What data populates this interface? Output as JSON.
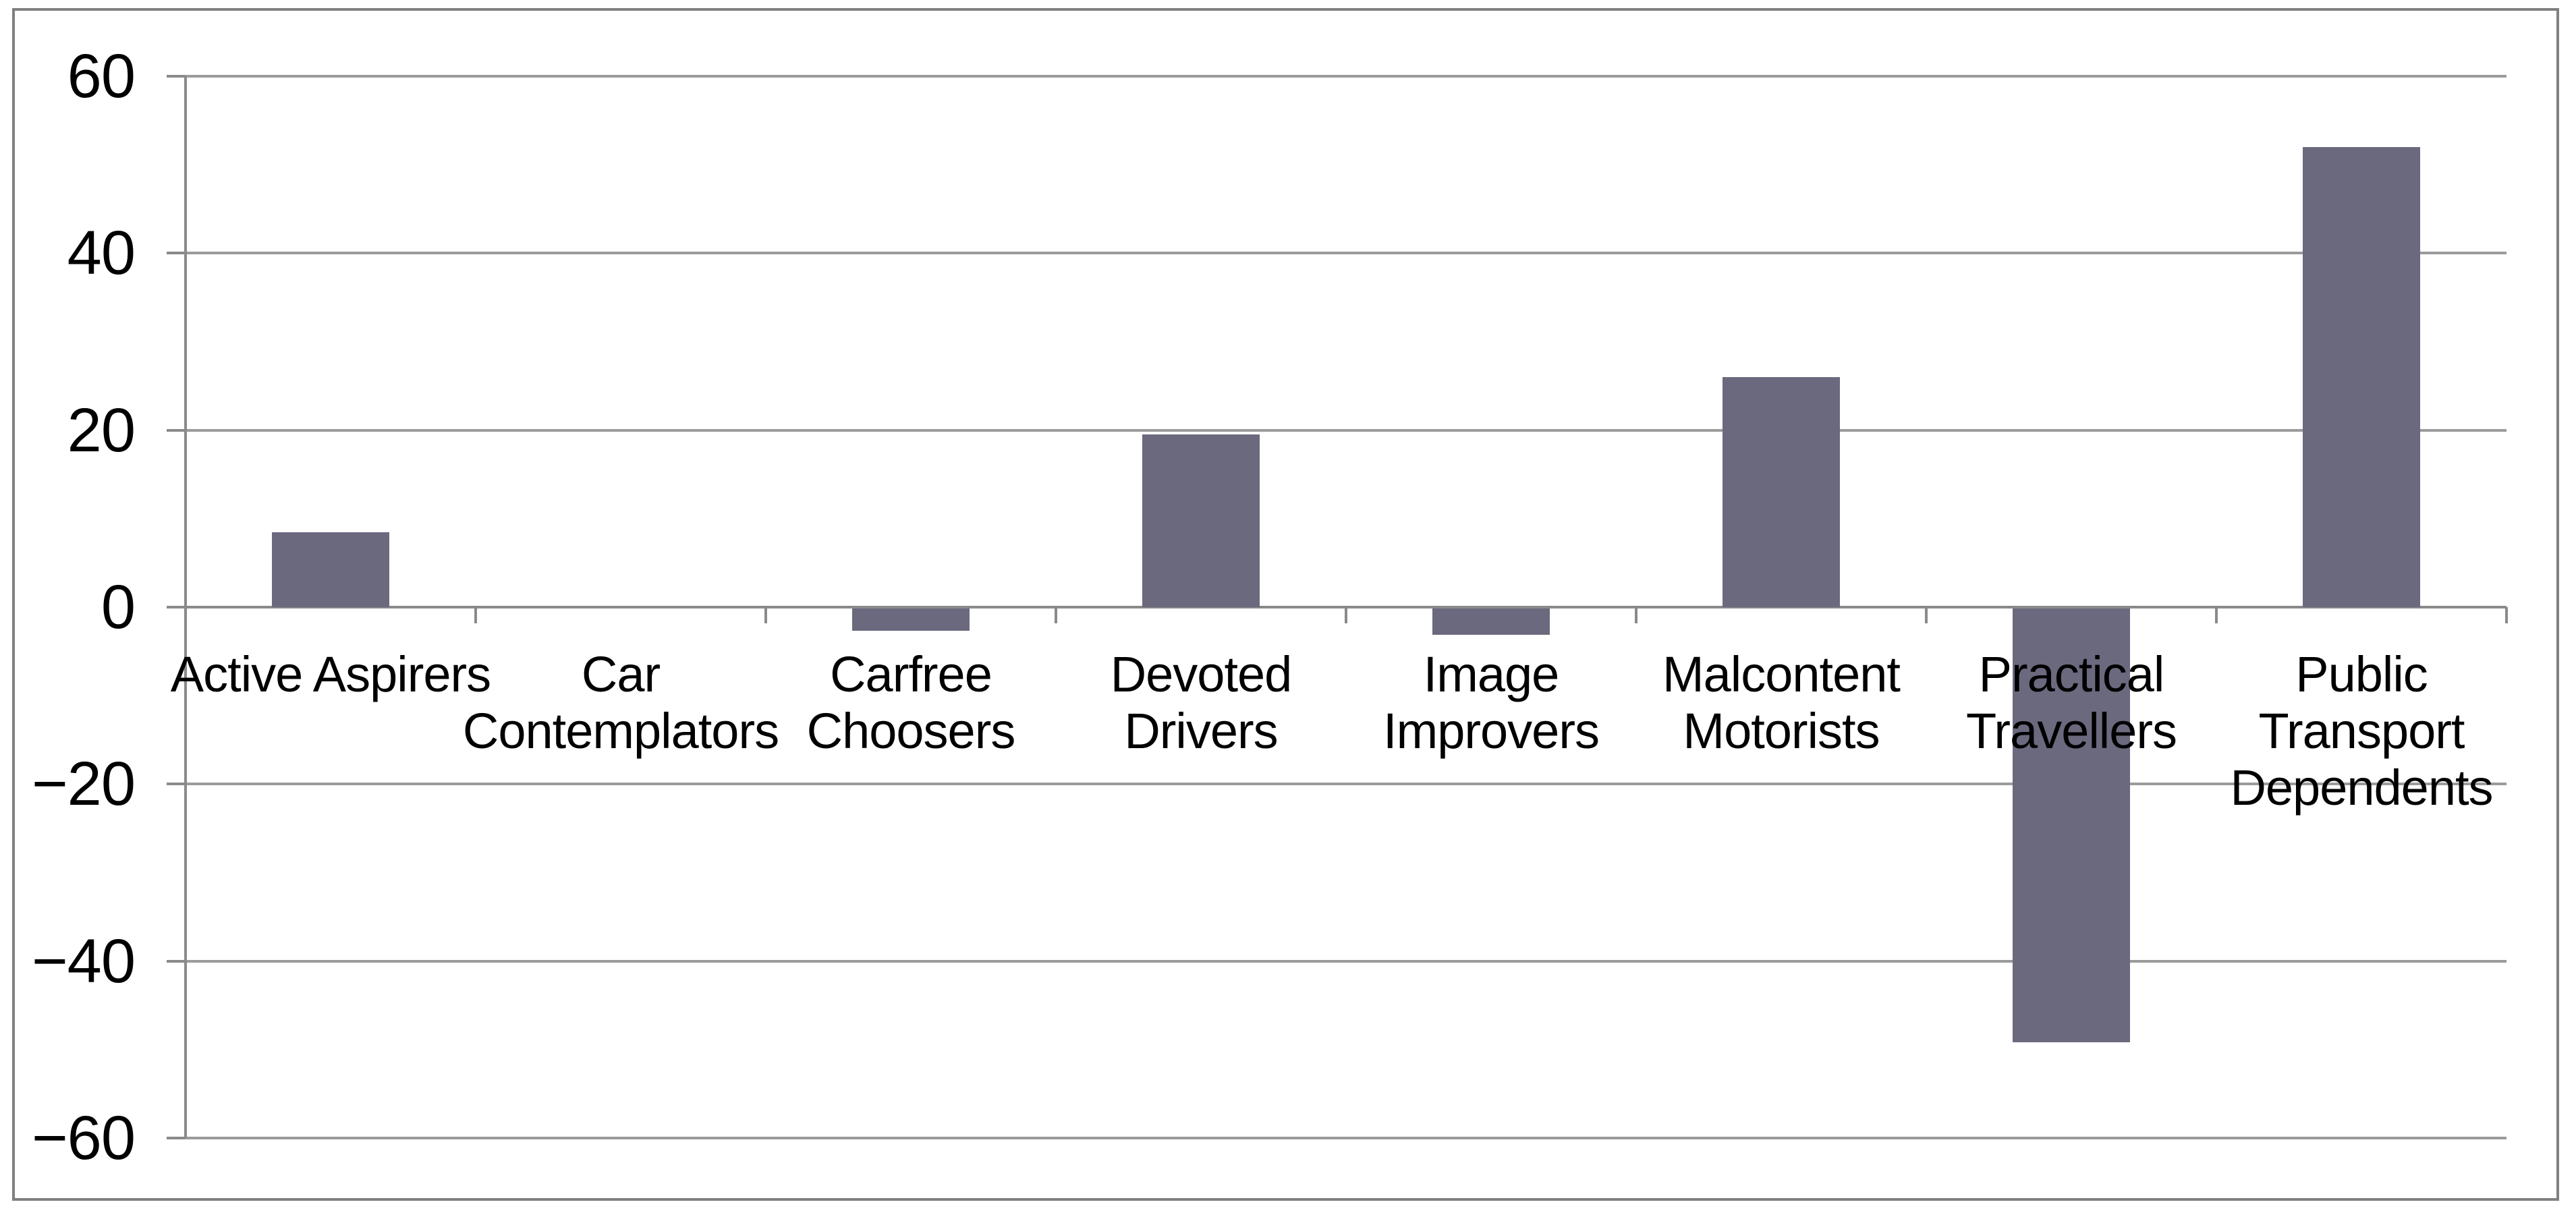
{
  "chart_data": {
    "type": "bar",
    "title": "",
    "xlabel": "",
    "ylabel": "",
    "categories": [
      "Active Aspirers",
      "Car Contemplators",
      "Carfree Choosers",
      "Devoted Drivers",
      "Image Improvers",
      "Malcontent Motorists",
      "Practical Travellers",
      "Public Transport Dependents"
    ],
    "category_display": [
      "Active Aspirers",
      "Car\nContemplators",
      "Carfree\nChoosers",
      "Devoted\nDrivers",
      "Image\nImprovers",
      "Malcontent\nMotorists",
      "Practical\nTravellers",
      "Public\nTransport\nDependents"
    ],
    "values": [
      8.5,
      0,
      -2.5,
      19.5,
      -3,
      26,
      -49,
      52
    ],
    "ylim": [
      -60,
      60
    ],
    "yticks": [
      60,
      40,
      20,
      0,
      -20,
      -40,
      -60
    ],
    "ytick_labels": [
      "60",
      "40",
      "20",
      "0",
      "−20",
      "−40",
      "−60"
    ],
    "ytick_interval": 20,
    "grid": "horizontal",
    "legend": "none",
    "colors": {
      "bar": "#6b697e",
      "gridline": "#9b9b9b",
      "axis": "#8a8a8a",
      "border": "#808080",
      "background": "#ffffff",
      "text": "#000000"
    }
  }
}
